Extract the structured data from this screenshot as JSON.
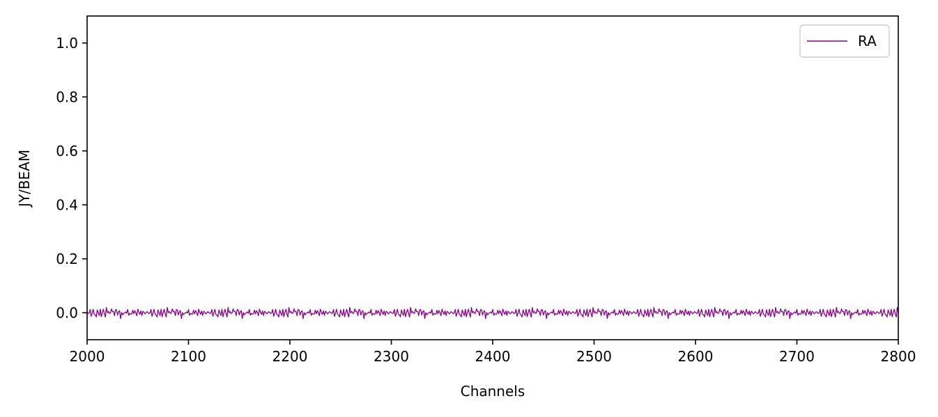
{
  "chart_data": {
    "type": "line",
    "title": "",
    "xlabel": "Channels",
    "ylabel": "JY/BEAM",
    "xlim": [
      2000,
      2800
    ],
    "ylim": [
      -0.1,
      1.1
    ],
    "xticks": [
      "2000",
      "2100",
      "2200",
      "2300",
      "2400",
      "2500",
      "2600",
      "2700",
      "2800"
    ],
    "yticks": [
      "0.0",
      "0.2",
      "0.4",
      "0.6",
      "0.8",
      "1.0"
    ],
    "grid": false,
    "legend_position": "top-right",
    "series": [
      {
        "name": "RA",
        "color": "#8b008b",
        "noise_level": 0.01,
        "x_start": 2000,
        "x_end": 2800,
        "x_step": 1,
        "y": [
          0.0,
          -0.008,
          0.006,
          0.002,
          -0.012,
          0.004,
          0.009,
          -0.003,
          -0.015,
          -0.03,
          0.005,
          0.002,
          -0.006,
          0.012,
          -0.004,
          0.0,
          0.014,
          -0.009,
          0.003,
          0.016,
          -0.005,
          0.007,
          -0.012,
          0.006,
          0.018,
          -0.002,
          0.004,
          -0.01,
          0.003,
          0.012,
          0.0,
          -0.008,
          0.005,
          -0.014,
          0.008,
          0.002,
          -0.004,
          0.01,
          -0.006,
          0.001,
          0.015,
          -0.02,
          0.006,
          0.003,
          -0.009,
          0.011,
          -0.004,
          0.007,
          0.0,
          -0.012,
          0.008,
          0.003,
          -0.006,
          0.013,
          -0.02,
          0.005,
          0.002,
          -0.011,
          0.009,
          0.004
        ]
      }
    ]
  }
}
